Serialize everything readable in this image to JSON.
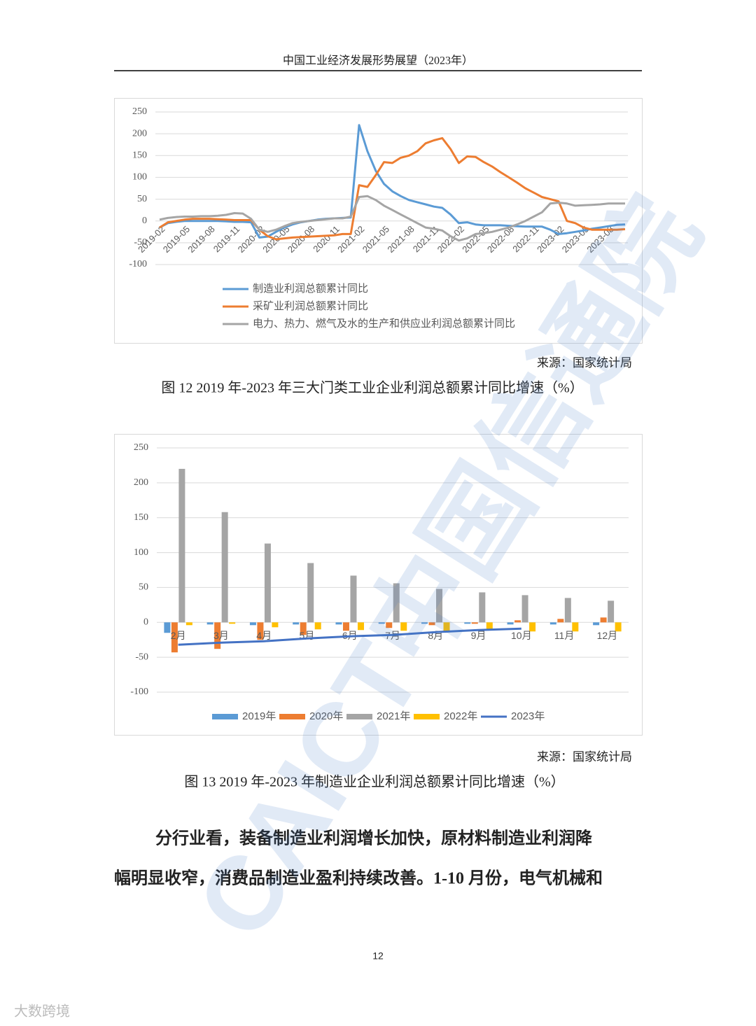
{
  "header": {
    "title": "中国工业经济发展形势展望（2023年）"
  },
  "watermark": "CAICT中国信通院",
  "chart_data": [
    {
      "type": "line",
      "categories": [
        "2019-02",
        null,
        null,
        "2019-05",
        null,
        null,
        "2019-08",
        null,
        null,
        "2019-11",
        null,
        null,
        "2020-02",
        null,
        null,
        "2020-05",
        null,
        null,
        "2020-08",
        null,
        null,
        "2020-11",
        null,
        null,
        "2021-02",
        null,
        null,
        "2021-05",
        null,
        null,
        "2021-08",
        null,
        null,
        "2021-11",
        null,
        null,
        "2022-02",
        null,
        null,
        "2022-05",
        null,
        null,
        "2022-08",
        null,
        null,
        "2022-11",
        null,
        null,
        "2023-02",
        null,
        null,
        "2023-05",
        null,
        null,
        "2023-08",
        null,
        null
      ],
      "series": [
        {
          "name": "制造业利润总额累计同比",
          "color": "#5b9bd5",
          "values": [
            -15,
            -5,
            -2,
            0,
            0,
            0,
            0,
            0,
            -1,
            -2,
            -2,
            -3,
            -38,
            -36,
            -25,
            -15,
            -8,
            -3,
            0,
            3,
            5,
            6,
            7,
            8,
            220,
            160,
            115,
            85,
            68,
            57,
            48,
            43,
            38,
            33,
            30,
            15,
            -5,
            -3,
            -8,
            -10,
            -10,
            -10,
            -11,
            -12,
            -13,
            -13,
            -13,
            -20,
            -30,
            -28,
            -25,
            -22,
            -18,
            -15,
            -12,
            -9,
            -8
          ]
        },
        {
          "name": "采矿业利润总额累计同比",
          "color": "#ed7d31",
          "values": [
            -15,
            -3,
            0,
            3,
            5,
            5,
            5,
            4,
            3,
            2,
            2,
            2,
            -20,
            -35,
            -42,
            -40,
            -38,
            -37,
            -36,
            -35,
            -34,
            -33,
            -30,
            -30,
            82,
            78,
            105,
            135,
            133,
            145,
            150,
            160,
            178,
            185,
            190,
            165,
            133,
            148,
            147,
            135,
            125,
            112,
            100,
            88,
            75,
            65,
            55,
            50,
            45,
            0,
            -5,
            -15,
            -20,
            -20,
            -20,
            -20,
            -19
          ]
        },
        {
          "name": "电力、热力、燃气及水的生产和供应业利润总额累计同比",
          "color": "#a5a5a5",
          "values": [
            3,
            7,
            9,
            10,
            10,
            11,
            11,
            12,
            14,
            18,
            17,
            5,
            -20,
            -25,
            -20,
            -12,
            -5,
            -2,
            0,
            2,
            4,
            6,
            6,
            10,
            55,
            57,
            48,
            35,
            25,
            15,
            5,
            -5,
            -15,
            -18,
            -22,
            -35,
            -45,
            -40,
            -30,
            -28,
            -25,
            -20,
            -15,
            -8,
            0,
            10,
            20,
            40,
            42,
            40,
            35,
            36,
            37,
            38,
            40,
            40,
            40
          ]
        }
      ],
      "ylim": [
        -100,
        250
      ],
      "yticks": [
        -100,
        -50,
        0,
        50,
        100,
        150,
        200,
        250
      ],
      "grid": true,
      "legend": "bottom",
      "source": "来源：国家统计局",
      "caption": "图 12 2019 年-2023 年三大门类工业企业利润总额累计同比增速（%）"
    },
    {
      "type": "bar",
      "categories": [
        "2月",
        "3月",
        "4月",
        "5月",
        "6月",
        "7月",
        "8月",
        "9月",
        "10月",
        "11月",
        "12月"
      ],
      "series": [
        {
          "name": "2019年",
          "color": "#5b9bd5",
          "values": [
            -15,
            -3,
            -4,
            -3,
            -3,
            -2,
            -2,
            -2,
            -3,
            -3,
            -4
          ]
        },
        {
          "name": "2020年",
          "color": "#ed7d31",
          "values": [
            -43,
            -38,
            -25,
            -18,
            -12,
            -8,
            -4,
            -2,
            3,
            5,
            7
          ]
        },
        {
          "name": "2021年",
          "color": "#a5a5a5",
          "values": [
            220,
            158,
            113,
            85,
            67,
            56,
            48,
            43,
            39,
            35,
            31
          ]
        },
        {
          "name": "2022年",
          "color": "#ffc000",
          "values": [
            -4,
            -2,
            -7,
            -10,
            -11,
            -12,
            -12,
            -11,
            -13,
            -13,
            -13
          ]
        },
        {
          "name": "2023年",
          "color": "#4472c4",
          "type": "line",
          "values": [
            -32,
            -29,
            -27,
            -23,
            -20,
            -18,
            -14,
            -11,
            -9,
            null,
            null
          ]
        }
      ],
      "ylim": [
        -100,
        250
      ],
      "yticks": [
        -100,
        -50,
        0,
        50,
        100,
        150,
        200,
        250
      ],
      "grid": true,
      "legend": "bottom",
      "source": "来源：国家统计局",
      "caption": "图 13 2019 年-2023 年制造业企业利润总额累计同比增速（%）"
    }
  ],
  "paragraph": [
    "分行业看，装备制造业利润增长加快，原材料制造业利润降",
    "幅明显收窄，消费品制造业盈利持续改善。1-10 月份，电气机械和"
  ],
  "page_number": "12",
  "footer_logo": "大数跨境"
}
